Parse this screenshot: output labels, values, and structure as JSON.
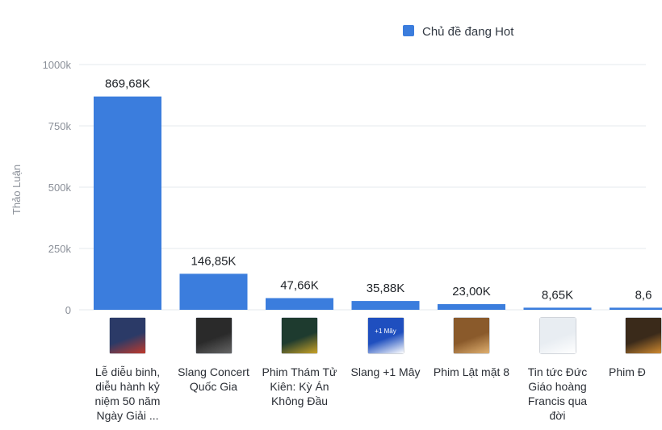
{
  "legend": {
    "label": "Chủ đề đang Hot",
    "color": "#3b7ddd"
  },
  "chart_data": {
    "type": "bar",
    "ylabel": "Thảo Luận",
    "ylim": [
      0,
      1000
    ],
    "yticks": [
      "0",
      "250k",
      "500k",
      "750k",
      "1000k"
    ],
    "ytick_values": [
      0,
      250,
      500,
      750,
      1000
    ],
    "categories": [
      "Lễ diễu binh, diễu hành kỷ niệm 50 năm Ngày Giải ...",
      "Slang Concert Quốc Gia",
      "Phim Thám Tử Kiên: Kỳ Án Không Đầu",
      "Slang +1 Mây",
      "Phim Lật mặt 8",
      "Tin tức Đức Giáo hoàng Francis qua đời",
      "Phim Đ"
    ],
    "values": [
      869.68,
      146.85,
      47.66,
      35.88,
      23.0,
      8.65,
      8.6
    ],
    "data_labels": [
      "869,68K",
      "146,85K",
      "47,66K",
      "35,88K",
      "23,00K",
      "8,65K",
      "8,6"
    ],
    "grid": true,
    "legend_position": "top-center"
  },
  "thumbnails": [
    {
      "icon": "parade-photo-icon",
      "bg": "#2b3a67",
      "accent": "#c0392b"
    },
    {
      "icon": "concert-photo-icon",
      "bg": "#2a2a2a",
      "accent": "#666666"
    },
    {
      "icon": "movie-poster-icon",
      "bg": "#1e3b2f",
      "accent": "#c9a227"
    },
    {
      "icon": "slang-poster-icon",
      "bg": "#1f4fbf",
      "accent": "#ffffff",
      "text": "+1 Mây"
    },
    {
      "icon": "movie-poster-icon",
      "bg": "#8a5a2b",
      "accent": "#e0b070"
    },
    {
      "icon": "pope-photo-icon",
      "bg": "#e8edf2",
      "accent": "#ffffff"
    },
    {
      "icon": "movie-poster-icon",
      "bg": "#3a2a1a",
      "accent": "#d08a30"
    }
  ]
}
